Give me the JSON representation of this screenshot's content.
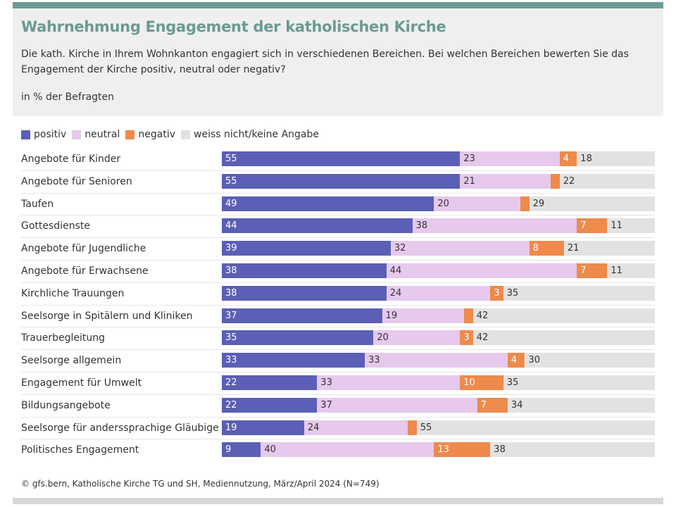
{
  "chart_data": {
    "type": "bar",
    "orientation": "horizontal",
    "stacked": true,
    "title": "Wahrnehmung Engagement der katholischen Kirche",
    "subtitle": "Die kath. Kirche in Ihrem Wohnkanton engagiert sich in verschiedenen Bereichen. Bei welchen Bereichen bewerten Sie das Engagement der Kirche positiv, neutral oder negativ?",
    "unit": "in % der Befragten",
    "xlim": [
      0,
      100
    ],
    "legend": "top-left",
    "categories": [
      "Angebote für Kinder",
      "Angebote für Senioren",
      "Taufen",
      "Gottesdienste",
      "Angebote für Jugendliche",
      "Angebote für Erwachsene",
      "Kirchliche Trauungen",
      "Seelsorge in Spitälern und Kliniken",
      "Trauerbegleitung",
      "Seelsorge allgemein",
      "Engagement für Umwelt",
      "Bildungsangebote",
      "Seelsorge für anderssprachige Gläubige",
      "Politisches Engagement"
    ],
    "series": [
      {
        "name": "positiv",
        "color": "#5b5fb5",
        "values": [
          55,
          55,
          49,
          44,
          39,
          38,
          38,
          37,
          35,
          33,
          22,
          22,
          19,
          9
        ]
      },
      {
        "name": "neutral",
        "color": "#e6c9ec",
        "values": [
          23,
          21,
          20,
          38,
          32,
          44,
          24,
          19,
          20,
          33,
          33,
          37,
          24,
          40
        ]
      },
      {
        "name": "negativ",
        "color": "#ee8a4b",
        "values": [
          4,
          2,
          2,
          7,
          8,
          7,
          3,
          2,
          3,
          4,
          10,
          7,
          2,
          13
        ]
      },
      {
        "name": "weiss nicht/keine Angabe",
        "color": "#e2e2e2",
        "values": [
          18,
          22,
          29,
          11,
          21,
          11,
          35,
          42,
          42,
          30,
          35,
          34,
          55,
          38
        ]
      }
    ],
    "source": "© gfs.bern, Katholische Kirche TG und SH, Mediennutzung, März/April 2024 (N=749)"
  }
}
